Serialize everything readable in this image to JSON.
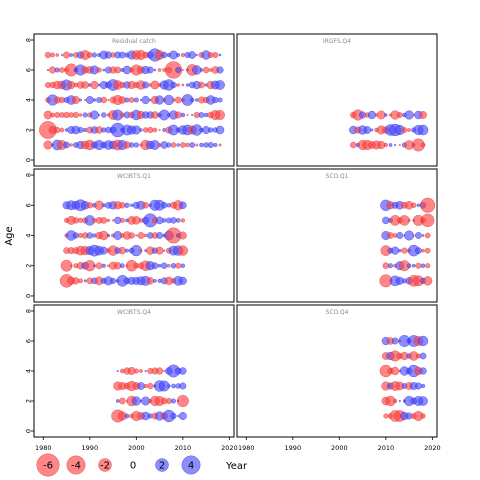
{
  "chart_data": {
    "type": "scatter",
    "subtype": "residual-bubble-grid",
    "ylabel": "Age",
    "xlabel_legend": "Year",
    "xlim": [
      1978,
      2021
    ],
    "ylim": [
      -0.4,
      8.4
    ],
    "x_ticks": [
      1980,
      1990,
      2000,
      2010,
      2020
    ],
    "y_ticks": [
      0,
      2,
      4,
      6,
      8
    ],
    "grid": false,
    "colors": {
      "negative": "#ff3c3c",
      "positive": "#4646ff"
    },
    "legend": {
      "placement": "bottom-left",
      "values": [
        -6,
        -4,
        -2,
        0,
        2,
        4
      ],
      "labels": [
        "-6",
        "-4",
        "-2",
        "0",
        "2",
        "4"
      ]
    },
    "panels": [
      {
        "title": "Residual catch",
        "x_start": 1981,
        "x_end": 2018,
        "ages": [
          1,
          2,
          3,
          4,
          5,
          6,
          7
        ],
        "seed": 11,
        "x_tick_labels": false,
        "y_tick_labels": true,
        "big": [
          [
            1981,
            2,
            -0.1,
            4.2
          ],
          [
            2008,
            6,
            -0.3,
            4.0
          ],
          [
            1996,
            2,
            0.2,
            2.8
          ]
        ]
      },
      {
        "title": "IRGFS.Q4",
        "x_start": 2003,
        "x_end": 2018,
        "ages": [
          1,
          2,
          3
        ],
        "seed": 23,
        "x_tick_labels": false,
        "y_tick_labels": false,
        "big": [
          [
            2004,
            3,
            -1,
            1.6
          ],
          [
            2017,
            1,
            -1,
            2.2
          ],
          [
            2012,
            2,
            1,
            2.0
          ]
        ]
      },
      {
        "title": "WCIBTS.Q1",
        "x_start": 1985,
        "x_end": 2010,
        "ages": [
          1,
          2,
          3,
          4,
          5,
          6
        ],
        "seed": 37,
        "x_tick_labels": false,
        "y_tick_labels": true,
        "big": [
          [
            2008,
            4,
            -1,
            3.4
          ],
          [
            2003,
            5,
            1,
            2.6
          ],
          [
            1985,
            1,
            -1,
            2.4
          ]
        ]
      },
      {
        "title": "SCO.Q1",
        "x_start": 2010,
        "x_end": 2019,
        "ages": [
          1,
          2,
          3,
          4,
          5,
          6
        ],
        "seed": 41,
        "x_tick_labels": false,
        "y_tick_labels": false,
        "big": [
          [
            2019,
            6,
            -1,
            3.0
          ],
          [
            2019,
            5,
            -1,
            2.4
          ],
          [
            2010,
            1,
            -1,
            2.2
          ]
        ]
      },
      {
        "title": "WCIBTS.Q4",
        "x_start": 1996,
        "x_end": 2010,
        "ages": [
          1,
          2,
          3,
          4
        ],
        "seed": 53,
        "x_tick_labels": true,
        "y_tick_labels": true,
        "big": [
          [
            1996,
            1,
            -1,
            2.2
          ],
          [
            2008,
            4,
            1,
            2.2
          ],
          [
            2007,
            1,
            1,
            2.0
          ]
        ]
      },
      {
        "title": "SCO.Q4",
        "x_start": 2010,
        "x_end": 2018,
        "ages": [
          1,
          2,
          3,
          4,
          5,
          6
        ],
        "seed": 67,
        "x_tick_labels": true,
        "y_tick_labels": false,
        "big": [
          [
            2010,
            4,
            -1,
            2.0
          ],
          [
            2016,
            4,
            1,
            2.0
          ],
          [
            2016,
            6,
            1,
            1.8
          ]
        ]
      }
    ]
  }
}
